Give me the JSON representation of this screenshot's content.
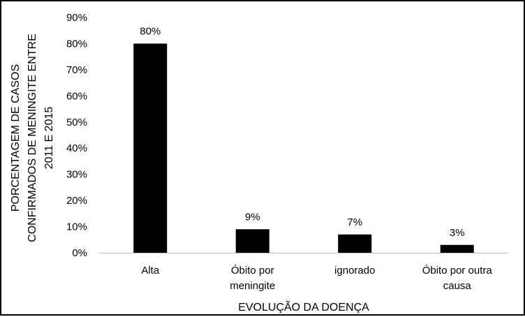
{
  "chart_data": {
    "type": "bar",
    "categories": [
      [
        "Alta"
      ],
      [
        "Óbito por",
        "meningite"
      ],
      [
        "ignorado"
      ],
      [
        "Óbito por outra",
        "causa"
      ]
    ],
    "values": [
      80,
      9,
      7,
      3
    ],
    "data_labels": [
      "80%",
      "9%",
      "7%",
      "3%"
    ],
    "y_ticks": [
      "0%",
      "10%",
      "20%",
      "30%",
      "40%",
      "50%",
      "60%",
      "70%",
      "80%",
      "90%"
    ],
    "ylim": [
      0,
      90
    ],
    "xlabel": "EVOLUÇÃO DA DOENÇA",
    "ylabel": [
      "PORCENTAGEM DE CASOS",
      "CONFIRMADOS DE MENINGITE ENTRE",
      "2011 E 2015"
    ],
    "grid": false,
    "legend": "none",
    "colors": {
      "bar": "#000000",
      "axis": "#bfbfbf",
      "text": "#000000",
      "background": "#ffffff",
      "frame": "#000000"
    }
  }
}
